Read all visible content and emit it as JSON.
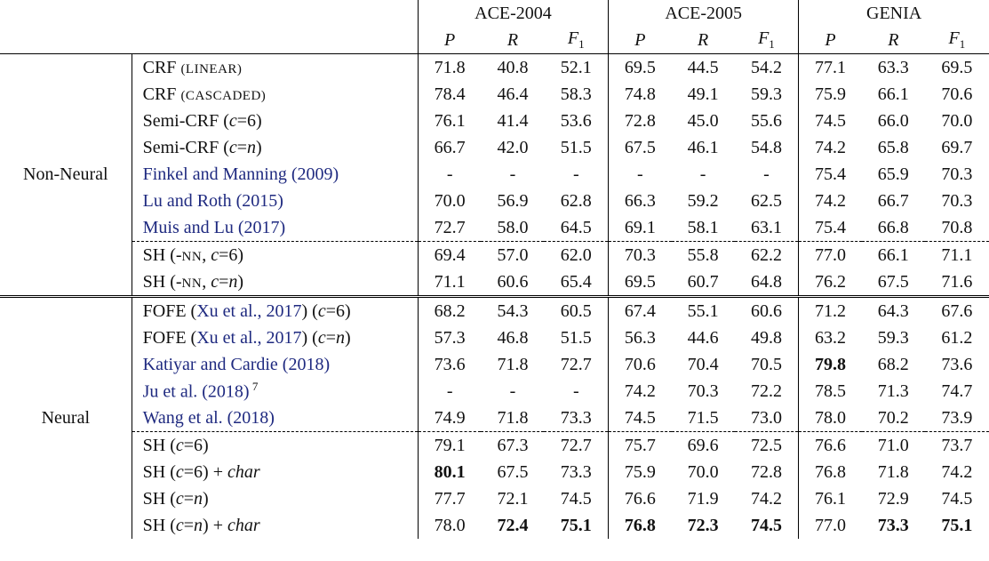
{
  "columns": {
    "groups": [
      "ACE-2004",
      "ACE-2005",
      "GENIA"
    ],
    "metrics": [
      {
        "text": "P"
      },
      {
        "text": "R"
      },
      {
        "text": "F",
        "sub": "1"
      }
    ]
  },
  "sections": [
    {
      "label": "Non-Neural",
      "blocks": [
        {
          "rows": [
            {
              "name": [
                {
                  "text": "CRF "
                },
                {
                  "text": "(LINEAR)",
                  "style": "sc"
                }
              ],
              "values": [
                "71.8",
                "40.8",
                "52.1",
                "69.5",
                "44.5",
                "54.2",
                "77.1",
                "63.3",
                "69.5"
              ],
              "bold": []
            },
            {
              "name": [
                {
                  "text": "CRF "
                },
                {
                  "text": "(CASCADED)",
                  "style": "sc"
                }
              ],
              "values": [
                "78.4",
                "46.4",
                "58.3",
                "74.8",
                "49.1",
                "59.3",
                "75.9",
                "66.1",
                "70.6"
              ],
              "bold": []
            },
            {
              "name": [
                {
                  "text": "Semi-CRF ("
                },
                {
                  "text": "c",
                  "style": "it"
                },
                {
                  "text": "=6)"
                }
              ],
              "values": [
                "76.1",
                "41.4",
                "53.6",
                "72.8",
                "45.0",
                "55.6",
                "74.5",
                "66.0",
                "70.0"
              ],
              "bold": []
            },
            {
              "name": [
                {
                  "text": "Semi-CRF ("
                },
                {
                  "text": "c",
                  "style": "it"
                },
                {
                  "text": "="
                },
                {
                  "text": "n",
                  "style": "it"
                },
                {
                  "text": ")"
                }
              ],
              "values": [
                "66.7",
                "42.0",
                "51.5",
                "67.5",
                "46.1",
                "54.8",
                "74.2",
                "65.8",
                "69.7"
              ],
              "bold": []
            },
            {
              "name": [
                {
                  "text": "Finkel and Manning (2009)",
                  "style": "cite"
                }
              ],
              "values": [
                "-",
                "-",
                "-",
                "-",
                "-",
                "-",
                "75.4",
                "65.9",
                "70.3"
              ],
              "bold": []
            },
            {
              "name": [
                {
                  "text": "Lu and Roth (2015)",
                  "style": "cite"
                }
              ],
              "values": [
                "70.0",
                "56.9",
                "62.8",
                "66.3",
                "59.2",
                "62.5",
                "74.2",
                "66.7",
                "70.3"
              ],
              "bold": []
            },
            {
              "name": [
                {
                  "text": "Muis and Lu (2017)",
                  "style": "cite"
                }
              ],
              "values": [
                "72.7",
                "58.0",
                "64.5",
                "69.1",
                "58.1",
                "63.1",
                "75.4",
                "66.8",
                "70.8"
              ],
              "bold": []
            }
          ]
        },
        {
          "rows": [
            {
              "name": [
                {
                  "text": "SH (-"
                },
                {
                  "text": "NN",
                  "style": "sc"
                },
                {
                  "text": ", "
                },
                {
                  "text": "c",
                  "style": "it"
                },
                {
                  "text": "=6)"
                }
              ],
              "values": [
                "69.4",
                "57.0",
                "62.0",
                "70.3",
                "55.8",
                "62.2",
                "77.0",
                "66.1",
                "71.1"
              ],
              "bold": []
            },
            {
              "name": [
                {
                  "text": "SH (-"
                },
                {
                  "text": "NN",
                  "style": "sc"
                },
                {
                  "text": ", "
                },
                {
                  "text": "c",
                  "style": "it"
                },
                {
                  "text": "="
                },
                {
                  "text": "n",
                  "style": "it"
                },
                {
                  "text": ")"
                }
              ],
              "values": [
                "71.1",
                "60.6",
                "65.4",
                "69.5",
                "60.7",
                "64.8",
                "76.2",
                "67.5",
                "71.6"
              ],
              "bold": []
            }
          ]
        }
      ]
    },
    {
      "label": "Neural",
      "blocks": [
        {
          "rows": [
            {
              "name": [
                {
                  "text": "FOFE ("
                },
                {
                  "text": "Xu et al., 2017",
                  "style": "cite"
                },
                {
                  "text": ") ("
                },
                {
                  "text": "c",
                  "style": "it"
                },
                {
                  "text": "=6)"
                }
              ],
              "values": [
                "68.2",
                "54.3",
                "60.5",
                "67.4",
                "55.1",
                "60.6",
                "71.2",
                "64.3",
                "67.6"
              ],
              "bold": []
            },
            {
              "name": [
                {
                  "text": "FOFE ("
                },
                {
                  "text": "Xu et al., 2017",
                  "style": "cite"
                },
                {
                  "text": ") ("
                },
                {
                  "text": "c",
                  "style": "it"
                },
                {
                  "text": "="
                },
                {
                  "text": "n",
                  "style": "it"
                },
                {
                  "text": ")"
                }
              ],
              "values": [
                "57.3",
                "46.8",
                "51.5",
                "56.3",
                "44.6",
                "49.8",
                "63.2",
                "59.3",
                "61.2"
              ],
              "bold": []
            },
            {
              "name": [
                {
                  "text": "Katiyar and Cardie (2018)",
                  "style": "cite"
                }
              ],
              "values": [
                "73.6",
                "71.8",
                "72.7",
                "70.6",
                "70.4",
                "70.5",
                "79.8",
                "68.2",
                "73.6"
              ],
              "bold": [
                6
              ]
            },
            {
              "name": [
                {
                  "text": "Ju et al. (2018)",
                  "style": "cite"
                },
                {
                  "text": " 7",
                  "style": "sup"
                }
              ],
              "values": [
                "-",
                "-",
                "-",
                "74.2",
                "70.3",
                "72.2",
                "78.5",
                "71.3",
                "74.7"
              ],
              "bold": []
            },
            {
              "name": [
                {
                  "text": "Wang et al. (2018)",
                  "style": "cite"
                }
              ],
              "values": [
                "74.9",
                "71.8",
                "73.3",
                "74.5",
                "71.5",
                "73.0",
                "78.0",
                "70.2",
                "73.9"
              ],
              "bold": []
            }
          ]
        },
        {
          "rows": [
            {
              "name": [
                {
                  "text": "SH ("
                },
                {
                  "text": "c",
                  "style": "it"
                },
                {
                  "text": "=6)"
                }
              ],
              "values": [
                "79.1",
                "67.3",
                "72.7",
                "75.7",
                "69.6",
                "72.5",
                "76.6",
                "71.0",
                "73.7"
              ],
              "bold": []
            },
            {
              "name": [
                {
                  "text": "SH ("
                },
                {
                  "text": "c",
                  "style": "it"
                },
                {
                  "text": "=6) + "
                },
                {
                  "text": "char",
                  "style": "it"
                }
              ],
              "values": [
                "80.1",
                "67.5",
                "73.3",
                "75.9",
                "70.0",
                "72.8",
                "76.8",
                "71.8",
                "74.2"
              ],
              "bold": [
                0
              ]
            },
            {
              "name": [
                {
                  "text": "SH ("
                },
                {
                  "text": "c",
                  "style": "it"
                },
                {
                  "text": "="
                },
                {
                  "text": "n",
                  "style": "it"
                },
                {
                  "text": ")"
                }
              ],
              "values": [
                "77.7",
                "72.1",
                "74.5",
                "76.6",
                "71.9",
                "74.2",
                "76.1",
                "72.9",
                "74.5"
              ],
              "bold": []
            },
            {
              "name": [
                {
                  "text": "SH ("
                },
                {
                  "text": "c",
                  "style": "it"
                },
                {
                  "text": "="
                },
                {
                  "text": "n",
                  "style": "it"
                },
                {
                  "text": ") + "
                },
                {
                  "text": "char",
                  "style": "it"
                }
              ],
              "values": [
                "78.0",
                "72.4",
                "75.1",
                "76.8",
                "72.3",
                "74.5",
                "77.0",
                "73.3",
                "75.1"
              ],
              "bold": [
                1,
                2,
                3,
                4,
                5,
                7,
                8
              ]
            }
          ]
        }
      ]
    }
  ]
}
